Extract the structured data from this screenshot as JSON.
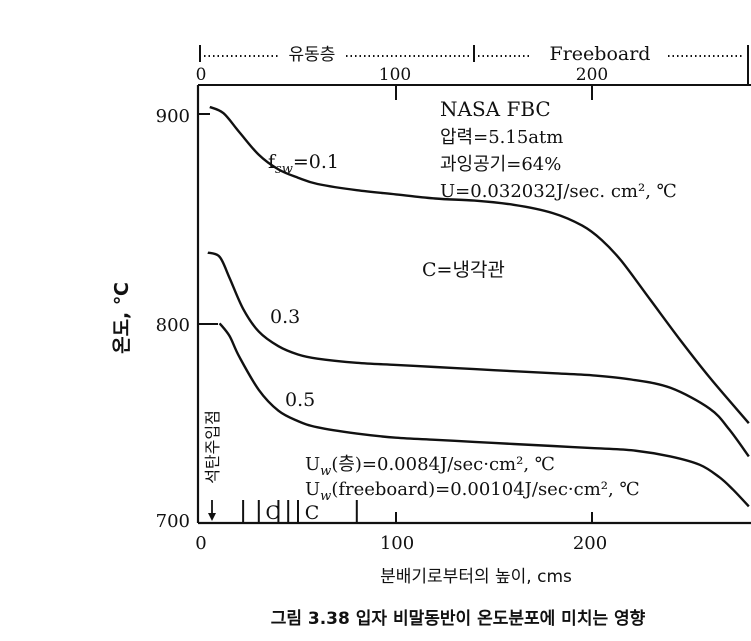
{
  "chart_data": {
    "type": "line",
    "caption": "그림 3.38  입자 비말동반이 온도분포에 미치는 영향",
    "xlabel": "분배기로부터의 높이, cms",
    "ylabel": "온도, ℃",
    "xlim": [
      0,
      280
    ],
    "ylim": [
      700,
      910
    ],
    "x_ticks": [
      "0",
      "100",
      "200"
    ],
    "y_ticks": [
      "700",
      "800",
      "900"
    ],
    "top_x_ticks": [
      "0",
      "100",
      "200"
    ],
    "top_zone_bed_label": "유동층",
    "top_zone_freeboard_label": "Freeboard",
    "bed_boundary_x": 140,
    "series": [
      {
        "name": "fsw=0.1",
        "label_main": "f",
        "label_sub": "sw",
        "label_value": "=0.1",
        "x": [
          5,
          12,
          20,
          30,
          40,
          50,
          60,
          80,
          100,
          120,
          140,
          160,
          180,
          195,
          205,
          215,
          230,
          245,
          260,
          280
        ],
        "y": [
          900,
          897,
          888,
          877,
          870,
          866,
          863,
          860,
          858,
          856,
          855,
          853,
          849,
          843,
          836,
          826,
          807,
          788,
          770,
          748
        ]
      },
      {
        "name": "0.3",
        "label_value": "0.3",
        "x": [
          4,
          10,
          15,
          22,
          30,
          40,
          50,
          60,
          80,
          100,
          120,
          140,
          160,
          180,
          200,
          220,
          240,
          260,
          270,
          280
        ],
        "y": [
          830,
          828,
          818,
          803,
          792,
          785,
          781,
          779,
          777,
          776,
          775,
          774,
          773,
          772,
          771,
          769,
          765,
          755,
          745,
          732
        ]
      },
      {
        "name": "0.5",
        "label_value": "0.5",
        "x": [
          10,
          15,
          20,
          30,
          40,
          50,
          60,
          80,
          100,
          120,
          140,
          160,
          180,
          200,
          220,
          240,
          255,
          265,
          272,
          280
        ],
        "y": [
          796,
          790,
          780,
          764,
          754,
          749,
          746,
          743,
          741,
          740,
          739,
          738,
          737,
          736,
          735,
          732,
          728,
          722,
          716,
          708
        ]
      }
    ],
    "info_lines": [
      "NASA FBC",
      "압력=5.15atm",
      "과잉공기=64%",
      "U=0.032032J/sec. cm², ℃"
    ],
    "cooling_tube_note": "C=냉각관",
    "uw_bed": {
      "prefix": "U",
      "sub": "w",
      "text": "(층)=0.0084J/sec·cm², ℃"
    },
    "uw_freeboard": {
      "prefix": "U",
      "sub": "w",
      "text": "(freeboard)=0.00104J/sec·cm², ℃"
    },
    "coal_feed_label": "석탄주입점",
    "coal_feed_x": 7,
    "cooling_tube_marks": [
      {
        "x": 22,
        "label": ""
      },
      {
        "x": 30,
        "label": "C"
      },
      {
        "x": 40,
        "label": ""
      },
      {
        "x": 45,
        "label": ""
      },
      {
        "x": 50,
        "label": "C"
      },
      {
        "x": 80,
        "label": ""
      }
    ],
    "colors": {
      "ink": "#111111",
      "background": "#ffffff"
    }
  }
}
